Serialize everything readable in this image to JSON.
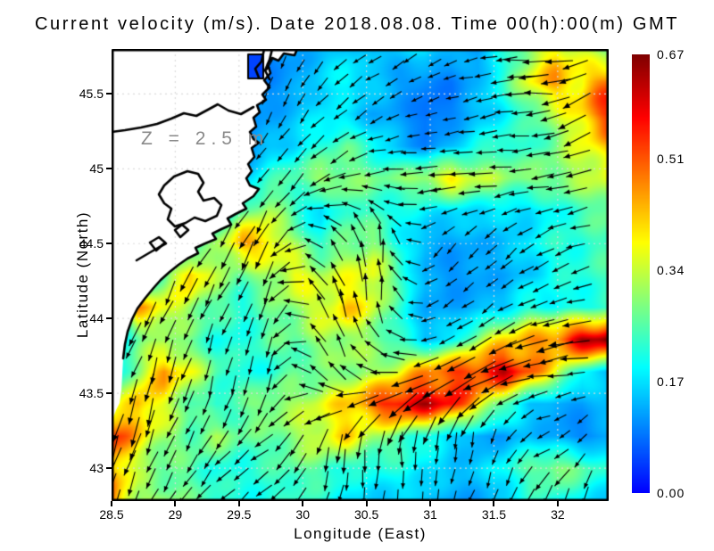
{
  "title": "Current velocity (m/s). Date 2018.08.08. Time 00(h):00(m) GMT",
  "plot": {
    "annotation": "Z = 2.5 m",
    "xlabel": "Longitude (East)",
    "ylabel": "Latitude (North)",
    "x_tick_labels": [
      "28.5",
      "29",
      "29.5",
      "30",
      "30.5",
      "31",
      "31.5",
      "32"
    ],
    "x_tick_values": [
      28.5,
      29,
      29.5,
      30,
      30.5,
      31,
      31.5,
      32
    ],
    "y_tick_labels": [
      "45.5",
      "45",
      "44.5",
      "44",
      "43.5",
      "43"
    ],
    "y_tick_values": [
      45.5,
      45,
      44.5,
      44,
      43.5,
      43
    ]
  },
  "colorbar": {
    "labels": [
      "0.67",
      "0.51",
      "0.34",
      "0.17",
      "0.00"
    ],
    "values": [
      0.67,
      0.51,
      0.34,
      0.17,
      0.0
    ],
    "min": 0.0,
    "max": 0.67,
    "units": "m/s"
  },
  "colors": {
    "land": "#ffffff",
    "coast": "#000000",
    "grid_sea": "#dcdcdc",
    "arrow": "#000000",
    "annotation": "#8a8a8a",
    "frame": "#000000",
    "cmap_low": "#0000ff",
    "cmap_high": "#800000"
  },
  "chart_data": {
    "type": "heatmap",
    "title": "Current velocity (m/s). Date 2018.08.08. Time 00(h):00(m) GMT",
    "xlabel": "Longitude (East)",
    "ylabel": "Latitude (North)",
    "units": "m/s",
    "depth_m": 2.5,
    "xlim": [
      28.5,
      32.4
    ],
    "ylim": [
      42.78,
      45.8
    ],
    "grid": "dotted 0.5 degree graticule",
    "legend_position": "right colorbar",
    "colorbar_ticks": [
      0.0,
      0.17,
      0.34,
      0.51,
      0.67
    ],
    "speed_grid": {
      "comment": "current speed m/s, 15 rows (lat 45.8 N down to 42.78 N) x 20 cols (lon 28.5 E to 32.4 E); land cells hold filler 0.1",
      "values": [
        [
          0.1,
          0.1,
          0.1,
          0.1,
          0.1,
          0.1,
          0.1,
          0.12,
          0.14,
          0.16,
          0.13,
          0.15,
          0.18,
          0.14,
          0.12,
          0.2,
          0.3,
          0.4,
          0.33,
          0.27
        ],
        [
          0.1,
          0.1,
          0.1,
          0.1,
          0.1,
          0.1,
          0.1,
          0.12,
          0.16,
          0.2,
          0.16,
          0.12,
          0.1,
          0.09,
          0.14,
          0.22,
          0.38,
          0.45,
          0.4,
          0.5
        ],
        [
          0.1,
          0.1,
          0.1,
          0.1,
          0.1,
          0.1,
          0.12,
          0.14,
          0.18,
          0.16,
          0.13,
          0.12,
          0.08,
          0.1,
          0.14,
          0.18,
          0.25,
          0.32,
          0.42,
          0.55
        ],
        [
          0.1,
          0.1,
          0.1,
          0.1,
          0.1,
          0.1,
          0.14,
          0.17,
          0.22,
          0.26,
          0.2,
          0.14,
          0.1,
          0.14,
          0.2,
          0.24,
          0.22,
          0.28,
          0.36,
          0.42
        ],
        [
          0.1,
          0.1,
          0.1,
          0.1,
          0.12,
          0.15,
          0.22,
          0.26,
          0.31,
          0.3,
          0.27,
          0.28,
          0.33,
          0.4,
          0.34,
          0.3,
          0.29,
          0.3,
          0.32,
          0.36
        ],
        [
          0.1,
          0.1,
          0.1,
          0.12,
          0.15,
          0.25,
          0.33,
          0.22,
          0.16,
          0.25,
          0.22,
          0.2,
          0.18,
          0.17,
          0.17,
          0.17,
          0.16,
          0.2,
          0.24,
          0.28
        ],
        [
          0.1,
          0.1,
          0.12,
          0.18,
          0.3,
          0.46,
          0.42,
          0.3,
          0.22,
          0.28,
          0.3,
          0.2,
          0.13,
          0.12,
          0.13,
          0.14,
          0.18,
          0.22,
          0.22,
          0.25
        ],
        [
          0.1,
          0.15,
          0.26,
          0.45,
          0.31,
          0.26,
          0.31,
          0.38,
          0.33,
          0.35,
          0.38,
          0.25,
          0.13,
          0.11,
          0.12,
          0.13,
          0.15,
          0.2,
          0.22,
          0.24
        ],
        [
          0.12,
          0.44,
          0.38,
          0.31,
          0.26,
          0.21,
          0.26,
          0.31,
          0.36,
          0.42,
          0.35,
          0.22,
          0.13,
          0.12,
          0.13,
          0.15,
          0.22,
          0.2,
          0.2,
          0.22
        ],
        [
          0.15,
          0.26,
          0.31,
          0.26,
          0.21,
          0.21,
          0.26,
          0.26,
          0.31,
          0.32,
          0.28,
          0.22,
          0.15,
          0.18,
          0.3,
          0.4,
          0.45,
          0.5,
          0.64,
          0.67
        ],
        [
          0.15,
          0.31,
          0.46,
          0.36,
          0.26,
          0.21,
          0.21,
          0.26,
          0.26,
          0.3,
          0.31,
          0.36,
          0.46,
          0.52,
          0.56,
          0.61,
          0.5,
          0.36,
          0.2,
          0.15
        ],
        [
          0.3,
          0.46,
          0.36,
          0.26,
          0.21,
          0.26,
          0.31,
          0.31,
          0.36,
          0.41,
          0.51,
          0.61,
          0.61,
          0.56,
          0.41,
          0.26,
          0.15,
          0.12,
          0.12,
          0.15
        ],
        [
          0.55,
          0.41,
          0.31,
          0.26,
          0.31,
          0.26,
          0.26,
          0.31,
          0.36,
          0.41,
          0.31,
          0.26,
          0.21,
          0.16,
          0.12,
          0.12,
          0.15,
          0.12,
          0.1,
          0.12
        ],
        [
          0.46,
          0.31,
          0.26,
          0.26,
          0.21,
          0.21,
          0.23,
          0.26,
          0.26,
          0.21,
          0.21,
          0.21,
          0.18,
          0.15,
          0.15,
          0.2,
          0.26,
          0.31,
          0.26,
          0.21
        ],
        [
          0.5,
          0.31,
          0.31,
          0.26,
          0.23,
          0.21,
          0.21,
          0.23,
          0.21,
          0.18,
          0.15,
          0.15,
          0.15,
          0.12,
          0.12,
          0.15,
          0.21,
          0.21,
          0.18,
          0.15
        ]
      ]
    },
    "flow_direction_deg": {
      "comment": "flow 'to' direction, degrees CCW from east (90=N), 8 rows x 10 cols over same domain",
      "values": [
        [
          240,
          240,
          240,
          245,
          230,
          215,
          205,
          185,
          180,
          205
        ],
        [
          240,
          240,
          240,
          240,
          225,
          205,
          195,
          190,
          185,
          215
        ],
        [
          235,
          235,
          235,
          235,
          215,
          182,
          178,
          180,
          188,
          195
        ],
        [
          230,
          230,
          235,
          248,
          140,
          95,
          225,
          225,
          210,
          190
        ],
        [
          245,
          250,
          245,
          258,
          110,
          90,
          215,
          215,
          200,
          190
        ],
        [
          250,
          252,
          255,
          255,
          100,
          165,
          205,
          205,
          190,
          185
        ],
        [
          255,
          250,
          235,
          215,
          265,
          270,
          265,
          255,
          200,
          240
        ],
        [
          250,
          240,
          225,
          215,
          255,
          265,
          255,
          245,
          250,
          255
        ]
      ]
    },
    "coastline": {
      "comment": "pixel coords local to 557x507 plot area",
      "land_polygon": [
        [
          0,
          0
        ],
        [
          208,
          0
        ],
        [
          205,
          7
        ],
        [
          193,
          5
        ],
        [
          187,
          13
        ],
        [
          180,
          10
        ],
        [
          175,
          17
        ],
        [
          178,
          27
        ],
        [
          171,
          35
        ],
        [
          177,
          43
        ],
        [
          169,
          51
        ],
        [
          173,
          57
        ],
        [
          163,
          63
        ],
        [
          166,
          71
        ],
        [
          159,
          77
        ],
        [
          162,
          87
        ],
        [
          155,
          93
        ],
        [
          159,
          101
        ],
        [
          165,
          105
        ],
        [
          157,
          111
        ],
        [
          160,
          121
        ],
        [
          153,
          129
        ],
        [
          157,
          137
        ],
        [
          151,
          145
        ],
        [
          155,
          153
        ],
        [
          165,
          157
        ],
        [
          159,
          165
        ],
        [
          147,
          173
        ],
        [
          151,
          179
        ],
        [
          139,
          185
        ],
        [
          130,
          190
        ],
        [
          134,
          197
        ],
        [
          123,
          202
        ],
        [
          113,
          207
        ],
        [
          117,
          213
        ],
        [
          105,
          218
        ],
        [
          94,
          223
        ],
        [
          97,
          229
        ],
        [
          85,
          235
        ],
        [
          75,
          242
        ],
        [
          65,
          250
        ],
        [
          55,
          259
        ],
        [
          47,
          268
        ],
        [
          38,
          279
        ],
        [
          29,
          291
        ],
        [
          23,
          303
        ],
        [
          18,
          317
        ],
        [
          15,
          331
        ],
        [
          13,
          347
        ],
        [
          12,
          365
        ],
        [
          11,
          383
        ],
        [
          9,
          397
        ],
        [
          5,
          405
        ],
        [
          2,
          413
        ],
        [
          0,
          417
        ]
      ],
      "coast_stroke_end_index": 48,
      "bay_line": [
        [
          159,
          65
        ],
        [
          145,
          73
        ],
        [
          131,
          69
        ],
        [
          119,
          62
        ],
        [
          108,
          68
        ],
        [
          95,
          75
        ],
        [
          81,
          72
        ],
        [
          67,
          78
        ],
        [
          51,
          84
        ],
        [
          33,
          88
        ],
        [
          15,
          91
        ],
        [
          0,
          93
        ]
      ],
      "lagoon_loop": [
        [
          70,
          143
        ],
        [
          85,
          137
        ],
        [
          97,
          140
        ],
        [
          103,
          150
        ],
        [
          97,
          160
        ],
        [
          103,
          170
        ],
        [
          115,
          167
        ],
        [
          123,
          175
        ],
        [
          118,
          187
        ],
        [
          105,
          193
        ],
        [
          93,
          189
        ],
        [
          83,
          195
        ],
        [
          71,
          199
        ],
        [
          63,
          191
        ],
        [
          67,
          179
        ],
        [
          59,
          173
        ],
        [
          53,
          163
        ],
        [
          59,
          153
        ]
      ],
      "islets": [
        [
          [
            71,
            203
          ],
          [
            79,
            197
          ],
          [
            86,
            203
          ],
          [
            77,
            211
          ]
        ],
        [
          [
            43,
            217
          ],
          [
            53,
            211
          ],
          [
            60,
            217
          ],
          [
            50,
            226
          ]
        ]
      ],
      "open_lines": [
        [
          [
            28,
            237
          ],
          [
            45,
            227
          ],
          [
            61,
            218
          ]
        ],
        [
          [
            171,
            0
          ],
          [
            168,
            14
          ],
          [
            161,
            22
          ],
          [
            165,
            32
          ]
        ],
        [
          [
            180,
            0
          ],
          [
            177,
            12
          ],
          [
            172,
            24
          ],
          [
            177,
            34
          ]
        ]
      ],
      "inlet_rect": [
        153,
        6,
        17,
        27
      ]
    }
  }
}
